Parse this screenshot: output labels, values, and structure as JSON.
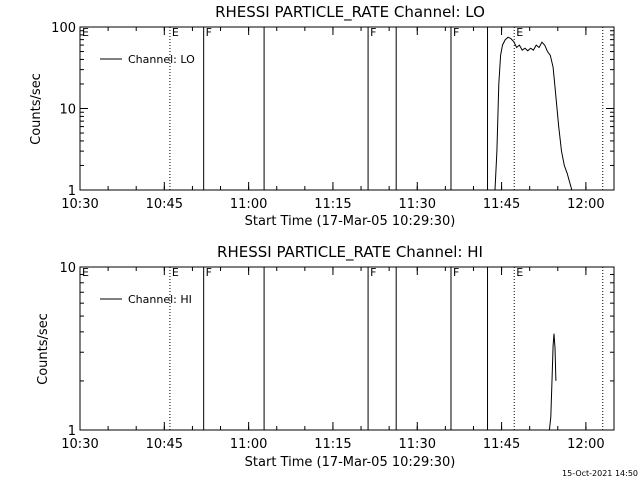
{
  "chart_data": [
    {
      "type": "line",
      "title": "RHESSI PARTICLE_RATE Channel: LO",
      "xlabel": "Start Time (17-Mar-05 10:29:30)",
      "ylabel": "Counts/sec",
      "yscale": "log",
      "xlim": [
        "10:30",
        "12:05"
      ],
      "ylim": [
        1,
        100
      ],
      "x_tick_labels": [
        "10:30",
        "10:45",
        "11:00",
        "11:15",
        "11:30",
        "11:45",
        "12:00"
      ],
      "y_tick_labels": [
        "1",
        "10",
        "100"
      ],
      "grid": false,
      "legend": {
        "position": "top-left",
        "entries": [
          "Channel: LO"
        ]
      },
      "series": [
        {
          "name": "Channel: LO",
          "x": [
            "11:43:50",
            "11:44:10",
            "11:44:30",
            "11:44:50",
            "11:45:10",
            "11:45:40",
            "11:46:10",
            "11:46:40",
            "11:47:10",
            "11:47:40",
            "11:48:10",
            "11:48:40",
            "11:49:10",
            "11:49:40",
            "11:50:10",
            "11:50:40",
            "11:51:10",
            "11:51:40",
            "11:52:10",
            "11:52:40",
            "11:53:10",
            "11:53:40",
            "11:54:10",
            "11:54:40",
            "11:55:10",
            "11:55:40",
            "11:56:10",
            "11:56:40",
            "11:57:10",
            "11:57:30"
          ],
          "y": [
            1,
            3,
            20,
            45,
            60,
            70,
            75,
            72,
            66,
            56,
            60,
            52,
            55,
            51,
            55,
            52,
            60,
            56,
            65,
            60,
            50,
            45,
            32,
            14,
            6,
            3,
            2,
            1.6,
            1.2,
            1
          ]
        }
      ],
      "vertical_markers": [
        {
          "time": "10:46",
          "style": "dotted",
          "label": "E"
        },
        {
          "time": "10:52",
          "style": "solid",
          "label": "F"
        },
        {
          "time": "11:02:45",
          "style": "solid",
          "label": ""
        },
        {
          "time": "11:21:15",
          "style": "solid",
          "label": "F"
        },
        {
          "time": "11:26:15",
          "style": "solid",
          "label": ""
        },
        {
          "time": "11:36",
          "style": "solid",
          "label": "F"
        },
        {
          "time": "11:42:30",
          "style": "solid",
          "label": ""
        },
        {
          "time": "11:47:15",
          "style": "dotted",
          "label": "E"
        },
        {
          "time": "12:03",
          "style": "dotted",
          "label": ""
        }
      ]
    },
    {
      "type": "line",
      "title": "RHESSI PARTICLE_RATE Channel: HI",
      "xlabel": "Start Time (17-Mar-05 10:29:30)",
      "ylabel": "Counts/sec",
      "yscale": "log",
      "xlim": [
        "10:30",
        "12:05"
      ],
      "ylim": [
        1,
        10
      ],
      "x_tick_labels": [
        "10:30",
        "10:45",
        "11:00",
        "11:15",
        "11:30",
        "11:45",
        "12:00"
      ],
      "y_tick_labels": [
        "1",
        "10"
      ],
      "grid": false,
      "legend": {
        "position": "top-left",
        "entries": [
          "Channel: HI"
        ]
      },
      "series": [
        {
          "name": "Channel: HI",
          "x": [
            "11:53:30",
            "11:53:45",
            "11:54:00",
            "11:54:10",
            "11:54:20",
            "11:54:30",
            "11:54:40"
          ],
          "y": [
            1,
            1.2,
            2.2,
            3.3,
            3.9,
            3.2,
            2.0
          ]
        }
      ],
      "vertical_markers": [
        {
          "time": "10:46",
          "style": "dotted",
          "label": "E"
        },
        {
          "time": "10:52",
          "style": "solid",
          "label": "F"
        },
        {
          "time": "11:02:45",
          "style": "solid",
          "label": ""
        },
        {
          "time": "11:21:15",
          "style": "solid",
          "label": "F"
        },
        {
          "time": "11:26:15",
          "style": "solid",
          "label": ""
        },
        {
          "time": "11:36",
          "style": "solid",
          "label": "F"
        },
        {
          "time": "11:42:30",
          "style": "solid",
          "label": ""
        },
        {
          "time": "11:47:15",
          "style": "dotted",
          "label": "E"
        },
        {
          "time": "12:03",
          "style": "dotted",
          "label": ""
        }
      ]
    }
  ],
  "timestamp": "15-Oct-2021 14:50"
}
